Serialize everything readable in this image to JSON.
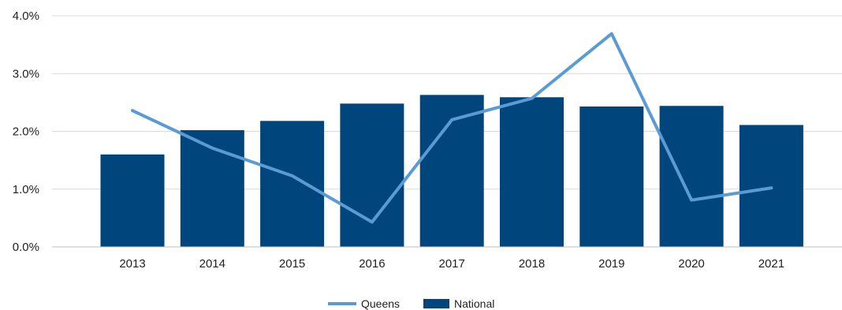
{
  "chart_data": {
    "type": "bar",
    "categories": [
      "2013",
      "2014",
      "2015",
      "2016",
      "2017",
      "2018",
      "2019",
      "2020",
      "2021"
    ],
    "series": [
      {
        "name": "National",
        "type": "bar",
        "values": [
          1.6,
          2.02,
          2.18,
          2.48,
          2.63,
          2.59,
          2.43,
          2.44,
          2.11
        ]
      },
      {
        "name": "Queens",
        "type": "line",
        "values": [
          2.36,
          1.71,
          1.23,
          0.43,
          2.2,
          2.57,
          3.69,
          0.81,
          1.02
        ]
      }
    ],
    "y_ticks": [
      "0.0%",
      "1.0%",
      "2.0%",
      "3.0%",
      "4.0%"
    ],
    "ylim": [
      0,
      4
    ],
    "grid": true,
    "legend_position": "bottom-center",
    "colors": {
      "National": "#00457c",
      "Queens": "#5b9bd5",
      "grid": "#d9d9d9",
      "axis": "#bfbfbf"
    }
  }
}
